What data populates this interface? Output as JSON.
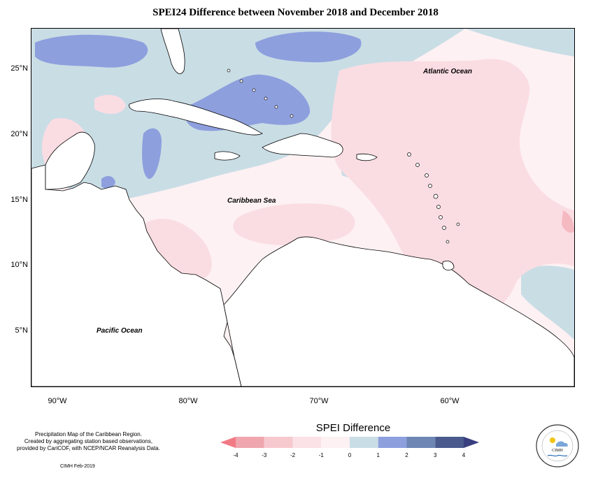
{
  "title": "SPEI24 Difference between November 2018 and December 2018",
  "map": {
    "oceans": {
      "atlantic": "Atlantic Ocean",
      "caribbean": "Caribbean Sea",
      "pacific": "Pacific Ocean"
    },
    "lat_labels": [
      "25°N",
      "20°N",
      "15°N",
      "10°N",
      "5°N"
    ],
    "lon_labels": [
      "90°W",
      "80°W",
      "70°W",
      "60°W"
    ],
    "colors": {
      "neg2": "#f5b9c2",
      "neg1": "#fadde3",
      "zero": "#fdf1f3",
      "pos0": "#c9dde5",
      "pos1": "#8d9fdd",
      "pos2": "#6d86b4"
    }
  },
  "legend": {
    "title": "SPEI Difference",
    "ticks": [
      "-4",
      "-3",
      "-2",
      "-1",
      "0",
      "1",
      "2",
      "3",
      "4"
    ],
    "colors": [
      "#f27a86",
      "#f0a6ae",
      "#f6c9cf",
      "#fae2e6",
      "#fdf1f3",
      "#c9dde5",
      "#8d9fdd",
      "#6d86b4",
      "#4a5a8c",
      "#3a3f80"
    ]
  },
  "notes": {
    "line1": "Precipitation Map of the Caribbean Region.",
    "line2": "Created by aggregating station based observations,",
    "line3": "provided by CariCOF, with NCEP/NCAR Reanalysis Data.",
    "credit": "CIMH Feb-2019"
  },
  "logo": {
    "text": "CIMH"
  }
}
